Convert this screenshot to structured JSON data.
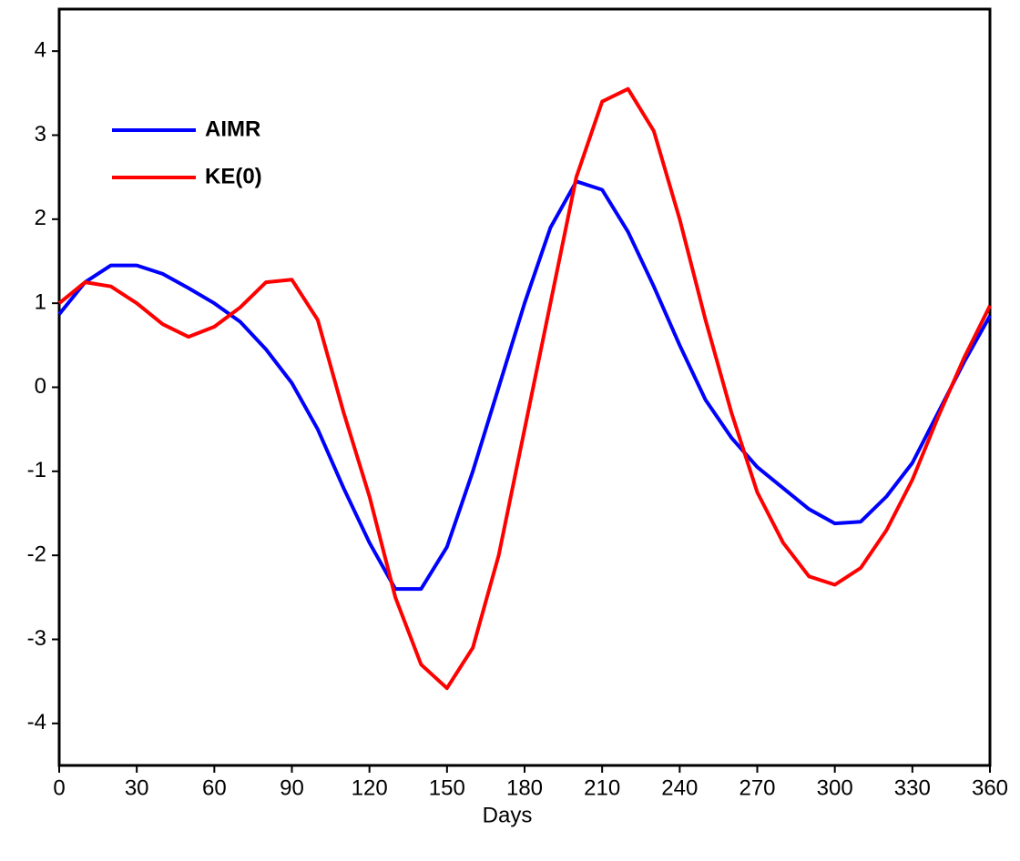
{
  "chart_data": {
    "type": "line",
    "x_label": "Days",
    "x": [
      0,
      10,
      20,
      30,
      40,
      50,
      60,
      70,
      80,
      90,
      100,
      110,
      120,
      130,
      140,
      150,
      160,
      170,
      180,
      190,
      200,
      210,
      220,
      230,
      240,
      250,
      260,
      270,
      280,
      290,
      300,
      310,
      320,
      330,
      340,
      350,
      360
    ],
    "series": [
      {
        "name": "AIMR",
        "color": "#0000ff",
        "values": [
          0.87,
          1.25,
          1.45,
          1.45,
          1.35,
          1.18,
          1.0,
          0.78,
          0.45,
          0.05,
          -0.5,
          -1.2,
          -1.85,
          -2.4,
          -2.4,
          -1.9,
          -1.0,
          0.0,
          1.0,
          1.9,
          2.45,
          2.35,
          1.85,
          1.2,
          0.5,
          -0.15,
          -0.6,
          -0.95,
          -1.2,
          -1.45,
          -1.62,
          -1.6,
          -1.3,
          -0.9,
          -0.3,
          0.3,
          0.85
        ]
      },
      {
        "name": "KE(0)",
        "color": "#ff0000",
        "values": [
          1.0,
          1.25,
          1.2,
          1.0,
          0.75,
          0.6,
          0.72,
          0.95,
          1.25,
          1.28,
          0.8,
          -0.3,
          -1.3,
          -2.5,
          -3.3,
          -3.58,
          -3.1,
          -2.0,
          -0.5,
          1.0,
          2.5,
          3.4,
          3.55,
          3.05,
          2.0,
          0.8,
          -0.3,
          -1.25,
          -1.85,
          -2.25,
          -2.35,
          -2.15,
          -1.7,
          -1.1,
          -0.35,
          0.35,
          0.97
        ]
      }
    ],
    "xlim": [
      0,
      360
    ],
    "xticks": [
      0,
      30,
      60,
      90,
      120,
      150,
      180,
      210,
      240,
      270,
      300,
      330,
      360
    ],
    "ylim": [
      -4.5,
      4.5
    ],
    "yticks": [
      -4,
      -3,
      -2,
      -1,
      0,
      1,
      2,
      3,
      4
    ],
    "grid": false,
    "legend": "upper left"
  }
}
